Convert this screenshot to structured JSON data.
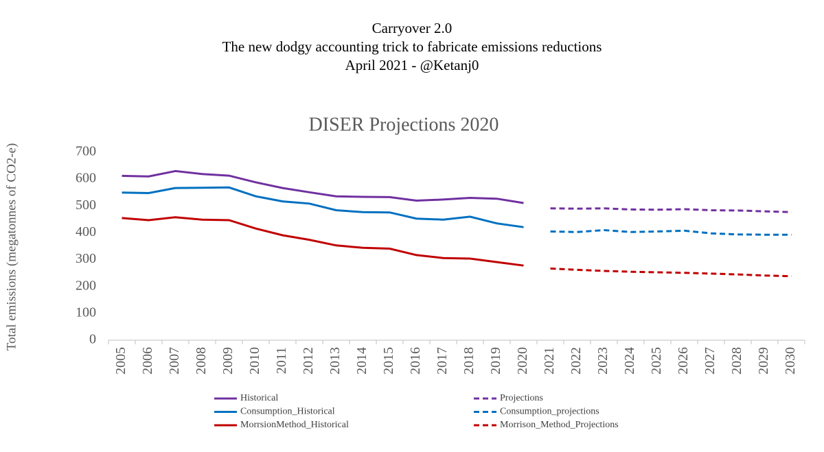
{
  "chart_data": {
    "type": "line",
    "heading": [
      "Carryover 2.0",
      "The new dodgy accounting trick to fabricate emissions reductions",
      "April 2021 - @Ketanj0"
    ],
    "title": "DISER Projections 2020",
    "y_label": "Total emissions (megatonnes of CO2-e)",
    "categories": [
      "2005",
      "2006",
      "2007",
      "2008",
      "2009",
      "2010",
      "2011",
      "2012",
      "2013",
      "2014",
      "2015",
      "2016",
      "2017",
      "2018",
      "2019",
      "2020",
      "2021",
      "2022",
      "2023",
      "2024",
      "2025",
      "2026",
      "2027",
      "2028",
      "2029",
      "2030"
    ],
    "ylim": [
      0,
      700
    ],
    "yticks": [
      0,
      100,
      200,
      300,
      400,
      500,
      600,
      700
    ],
    "grid": false,
    "legend": "bottom",
    "series": [
      {
        "name": "Historical",
        "color": "#7030a0",
        "dashed": false,
        "values": [
          612,
          610,
          630,
          619,
          613,
          588,
          567,
          551,
          536,
          534,
          533,
          520,
          524,
          530,
          527,
          511,
          null,
          null,
          null,
          null,
          null,
          null,
          null,
          null,
          null,
          null
        ]
      },
      {
        "name": "Projections",
        "color": "#7030a0",
        "dashed": true,
        "values": [
          null,
          null,
          null,
          null,
          null,
          null,
          null,
          null,
          null,
          null,
          null,
          null,
          null,
          null,
          null,
          null,
          491,
          490,
          491,
          487,
          486,
          488,
          484,
          483,
          480,
          477
        ]
      },
      {
        "name": "Consumption_Historical",
        "color": "#0070c0",
        "dashed": false,
        "values": [
          550,
          548,
          567,
          568,
          569,
          536,
          517,
          509,
          484,
          477,
          476,
          453,
          449,
          460,
          435,
          421,
          null,
          null,
          null,
          null,
          null,
          null,
          null,
          null,
          null,
          null
        ]
      },
      {
        "name": "Consumption_projections",
        "color": "#0070c0",
        "dashed": true,
        "values": [
          null,
          null,
          null,
          null,
          null,
          null,
          null,
          null,
          null,
          null,
          null,
          null,
          null,
          null,
          null,
          null,
          405,
          403,
          410,
          403,
          405,
          408,
          398,
          394,
          393,
          393
        ]
      },
      {
        "name": "MorrsionMethod_Historical",
        "color": "#c00000",
        "dashed": false,
        "values": [
          455,
          447,
          458,
          449,
          447,
          416,
          391,
          374,
          353,
          344,
          341,
          317,
          306,
          304,
          291,
          278,
          null,
          null,
          null,
          null,
          null,
          null,
          null,
          null,
          null,
          null
        ]
      },
      {
        "name": "Morrison_Method_Projections",
        "color": "#c00000",
        "dashed": true,
        "values": [
          null,
          null,
          null,
          null,
          null,
          null,
          null,
          null,
          null,
          null,
          null,
          null,
          null,
          null,
          null,
          null,
          267,
          262,
          258,
          255,
          253,
          251,
          248,
          245,
          241,
          238
        ]
      }
    ]
  }
}
